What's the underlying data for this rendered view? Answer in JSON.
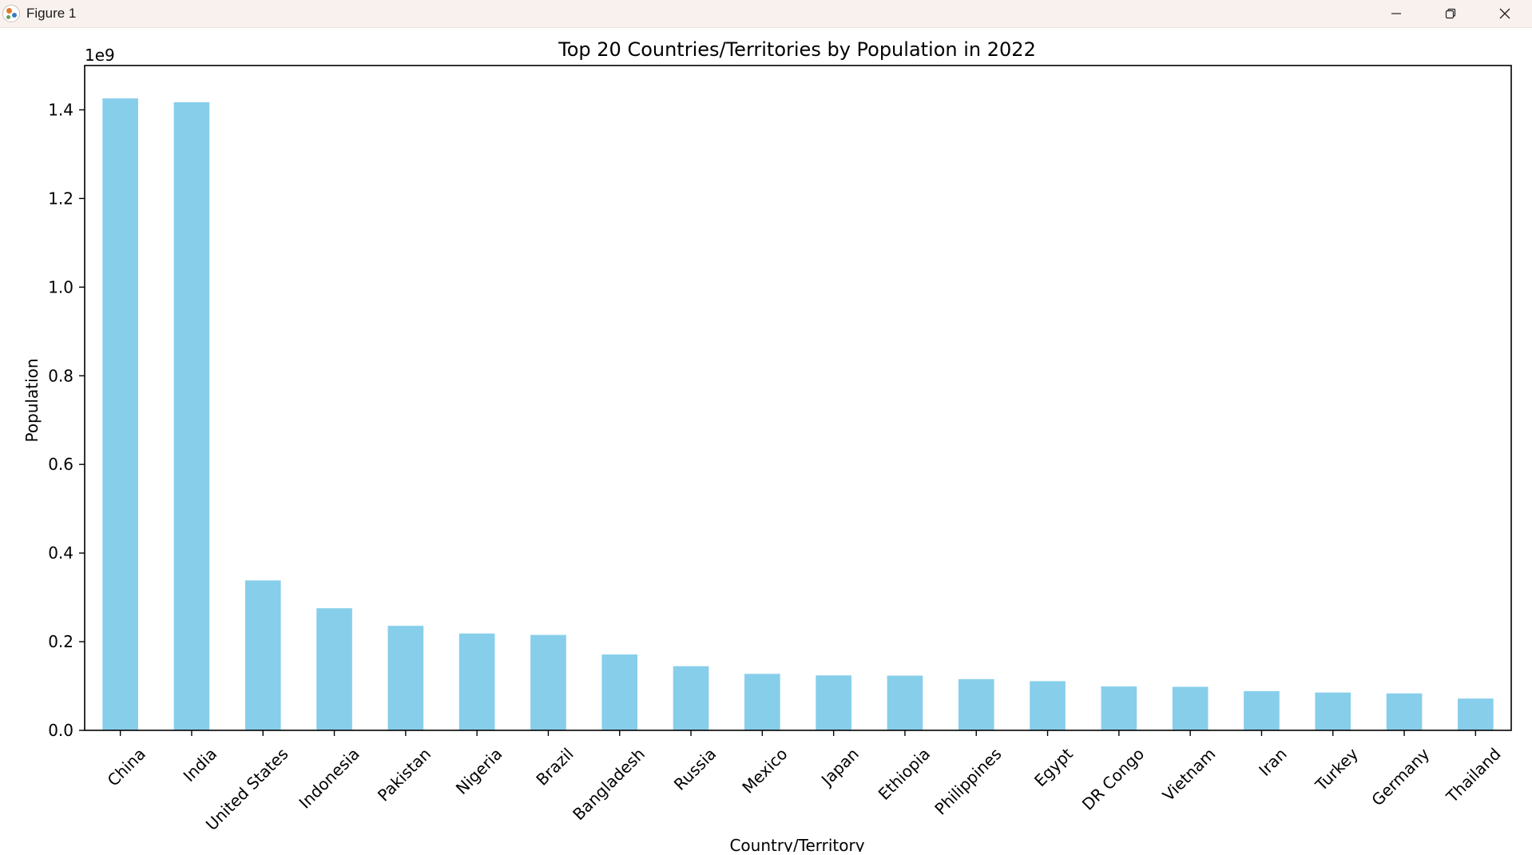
{
  "window": {
    "title": "Figure 1",
    "controls": {
      "minimize_icon": "minimize-icon",
      "maximize_icon": "restore-icon",
      "close_icon": "close-icon"
    }
  },
  "chart_data": {
    "type": "bar",
    "title": "Top 20 Countries/Territories by Population in 2022",
    "xlabel": "Country/Territory",
    "ylabel": "Population",
    "offset_label": "1e9",
    "categories": [
      "China",
      "India",
      "United States",
      "Indonesia",
      "Pakistan",
      "Nigeria",
      "Brazil",
      "Bangladesh",
      "Russia",
      "Mexico",
      "Japan",
      "Ethiopia",
      "Philippines",
      "Egypt",
      "DR Congo",
      "Vietnam",
      "Iran",
      "Turkey",
      "Germany",
      "Thailand"
    ],
    "values": [
      1425887337,
      1417173173,
      338289857,
      275501339,
      235824862,
      218541212,
      215313498,
      171186372,
      144713314,
      127504125,
      123951692,
      123379924,
      115559009,
      110990103,
      99010212,
      98186856,
      88550570,
      85341241,
      83369843,
      71697030
    ],
    "ylim": [
      0,
      1500000000
    ],
    "y_ticks": [
      0,
      200000000,
      400000000,
      600000000,
      800000000,
      1000000000,
      1200000000,
      1400000000
    ],
    "y_tick_labels": [
      "0.0",
      "0.2",
      "0.4",
      "0.6",
      "0.8",
      "1.0",
      "1.2",
      "1.4"
    ],
    "bar_color": "#87ceeb",
    "grid": false,
    "legend": "none"
  }
}
